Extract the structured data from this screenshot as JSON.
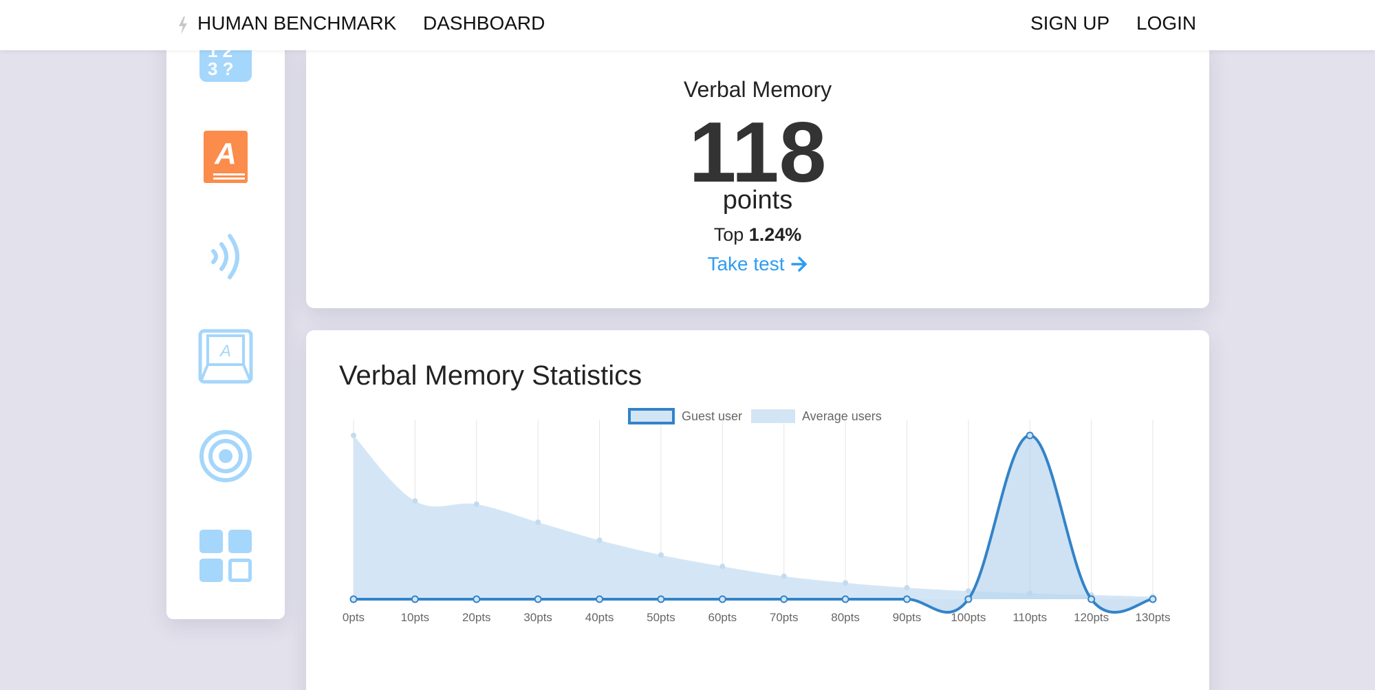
{
  "nav": {
    "logo_label": "HUMAN BENCHMARK",
    "dashboard_label": "DASHBOARD",
    "signup_label": "SIGN UP",
    "login_label": "LOGIN"
  },
  "sidebar": {
    "items": [
      {
        "icon": "number-memory-icon",
        "color": "#a5d6fb"
      },
      {
        "icon": "verbal-memory-icon",
        "color": "#fb8c4b",
        "active": true
      },
      {
        "icon": "hearing-icon",
        "color": "#a5d6fb"
      },
      {
        "icon": "typing-icon",
        "color": "#a5d6fb"
      },
      {
        "icon": "aim-target-icon",
        "color": "#a5d6fb"
      },
      {
        "icon": "apps-grid-icon",
        "color": "#a5d6fb"
      }
    ]
  },
  "score_card": {
    "title": "Verbal Memory",
    "score": "118",
    "units": "points",
    "top_prefix": "Top",
    "top_value": "1.24%",
    "take_test_label": "Take test",
    "accent_color": "#2e9cf0"
  },
  "stats": {
    "title": "Verbal Memory Statistics"
  },
  "chart_data": {
    "type": "line",
    "x": [
      0,
      10,
      20,
      30,
      40,
      50,
      60,
      70,
      80,
      90,
      100,
      110,
      120,
      130
    ],
    "tick_labels": [
      "0pts",
      "10pts",
      "20pts",
      "30pts",
      "40pts",
      "50pts",
      "60pts",
      "70pts",
      "80pts",
      "90pts",
      "100pts",
      "110pts",
      "120pts",
      "130pts"
    ],
    "ylim": [
      0,
      1
    ],
    "grid": "vertical",
    "legend": "top-center",
    "series": [
      {
        "name": "Guest user",
        "style": "line",
        "color": "#3383c8",
        "values": [
          0,
          0,
          0,
          0,
          0,
          0,
          0,
          0,
          0,
          0,
          0,
          1,
          0,
          0
        ]
      },
      {
        "name": "Average users",
        "style": "area",
        "color": "#d2e5f5",
        "values": [
          1,
          0.6,
          0.58,
          0.47,
          0.36,
          0.27,
          0.2,
          0.14,
          0.1,
          0.07,
          0.05,
          0.035,
          0.025,
          0.015
        ]
      }
    ]
  }
}
